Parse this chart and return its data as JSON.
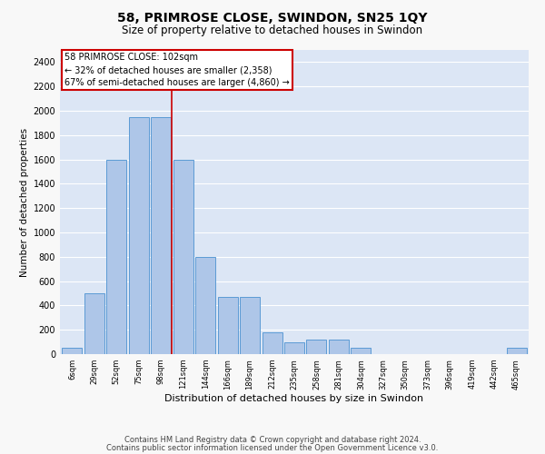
{
  "title": "58, PRIMROSE CLOSE, SWINDON, SN25 1QY",
  "subtitle": "Size of property relative to detached houses in Swindon",
  "xlabel": "Distribution of detached houses by size in Swindon",
  "ylabel": "Number of detached properties",
  "footnote1": "Contains HM Land Registry data © Crown copyright and database right 2024.",
  "footnote2": "Contains public sector information licensed under the Open Government Licence v3.0.",
  "categories": [
    "6sqm",
    "29sqm",
    "52sqm",
    "75sqm",
    "98sqm",
    "121sqm",
    "144sqm",
    "166sqm",
    "189sqm",
    "212sqm",
    "235sqm",
    "258sqm",
    "281sqm",
    "304sqm",
    "327sqm",
    "350sqm",
    "373sqm",
    "396sqm",
    "419sqm",
    "442sqm",
    "465sqm"
  ],
  "values": [
    50,
    500,
    1600,
    1950,
    1950,
    1600,
    800,
    470,
    470,
    180,
    100,
    120,
    120,
    50,
    0,
    0,
    0,
    0,
    0,
    0,
    50
  ],
  "bar_color": "#aec6e8",
  "bar_edge_color": "#5b9bd5",
  "background_color": "#dce6f5",
  "grid_color": "#ffffff",
  "annotation_text": "58 PRIMROSE CLOSE: 102sqm\n← 32% of detached houses are smaller (2,358)\n67% of semi-detached houses are larger (4,860) →",
  "annotation_box_color": "#ffffff",
  "annotation_box_edge_color": "#cc0000",
  "property_line_color": "#cc0000",
  "property_line_index": 4.5,
  "ylim": [
    0,
    2500
  ],
  "yticks": [
    0,
    200,
    400,
    600,
    800,
    1000,
    1200,
    1400,
    1600,
    1800,
    2000,
    2200,
    2400
  ],
  "fig_facecolor": "#f8f8f8",
  "title_fontsize": 10,
  "subtitle_fontsize": 8.5,
  "ylabel_fontsize": 7.5,
  "xlabel_fontsize": 8,
  "ytick_fontsize": 7,
  "xtick_fontsize": 6,
  "annotation_fontsize": 7,
  "footnote_fontsize": 6
}
